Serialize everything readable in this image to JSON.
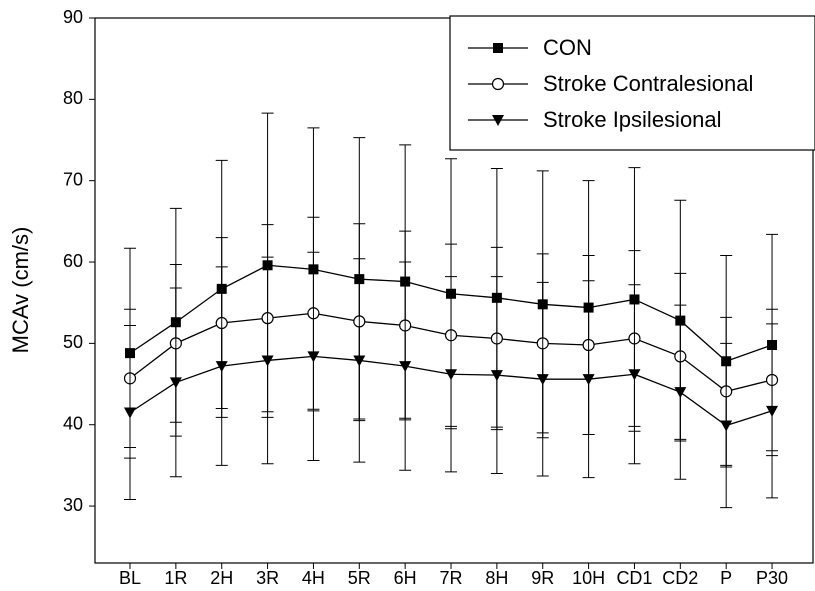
{
  "chart_data": {
    "type": "line",
    "y_label": "MCAv (cm/s)",
    "categories": [
      "BL",
      "1R",
      "2H",
      "3R",
      "4H",
      "5R",
      "6H",
      "7R",
      "8H",
      "9R",
      "10H",
      "CD1",
      "CD2",
      "P",
      "P30"
    ],
    "series": [
      {
        "name": "CON",
        "color": "#000000",
        "marker": "square",
        "values": [
          48.8,
          52.6,
          56.7,
          59.6,
          59.1,
          57.9,
          57.6,
          56.1,
          55.6,
          54.8,
          54.4,
          55.4,
          52.8,
          47.8,
          49.8
        ],
        "errors": [
          12.9,
          14.0,
          15.8,
          18.7,
          17.4,
          17.4,
          16.8,
          16.6,
          15.9,
          16.4,
          15.6,
          16.2,
          14.8,
          13.0,
          13.6
        ]
      },
      {
        "name": "Stroke Contralesional",
        "color": "#000000",
        "marker": "circle",
        "values": [
          45.7,
          50.0,
          52.5,
          53.1,
          53.7,
          52.7,
          52.2,
          51.0,
          50.6,
          50.0,
          49.8,
          50.6,
          48.4,
          44.1,
          45.5
        ],
        "errors": [
          8.5,
          9.7,
          10.5,
          11.5,
          11.8,
          12.0,
          11.6,
          11.2,
          11.2,
          11.0,
          11.0,
          10.8,
          10.2,
          9.1,
          8.7
        ]
      },
      {
        "name": "Stroke Ipsilesional",
        "color": "#000000",
        "marker": "triangle-down",
        "values": [
          41.5,
          45.2,
          47.2,
          47.9,
          48.4,
          47.9,
          47.2,
          46.2,
          46.1,
          45.6,
          45.6,
          46.2,
          44.0,
          39.9,
          41.7
        ],
        "errors": [
          10.7,
          11.6,
          12.2,
          12.7,
          12.8,
          12.5,
          12.8,
          12.0,
          12.1,
          11.9,
          12.1,
          11.0,
          10.7,
          10.1,
          10.7
        ]
      }
    ],
    "ylim": [
      23,
      90
    ],
    "yticks": [
      30,
      40,
      50,
      60,
      70,
      80,
      90
    ],
    "legend": "upper-right"
  }
}
